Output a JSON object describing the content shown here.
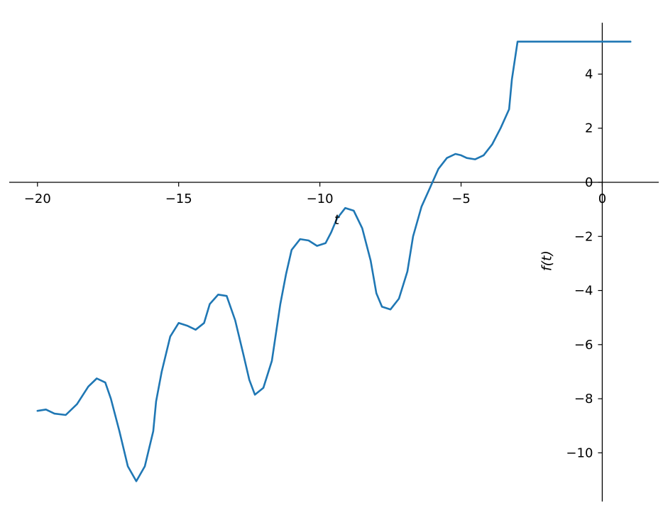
{
  "chart_data": {
    "type": "line",
    "title": "",
    "xlabel": "t",
    "ylabel": "f(t)",
    "xlim": [
      -21,
      2
    ],
    "ylim": [
      -11.8,
      5.9
    ],
    "x_ticks": [
      -20,
      -15,
      -10,
      -5,
      0
    ],
    "x_tick_labels": [
      "−20",
      "−15",
      "−10",
      "−5",
      "0"
    ],
    "y_ticks": [
      -10,
      -8,
      -6,
      -4,
      -2,
      0,
      2,
      4
    ],
    "y_tick_labels": [
      "−10",
      "−8",
      "−6",
      "−4",
      "−2",
      "0",
      "2",
      "4"
    ],
    "grid": false,
    "line_color": "#1f77b4",
    "series": [
      {
        "x": [
          -20.0,
          -19.7,
          -19.4,
          -19.0,
          -18.6,
          -18.2,
          -17.9,
          -17.6,
          -17.4,
          -17.1,
          -16.8,
          -16.5,
          -16.2,
          -15.9,
          -15.8,
          -15.6,
          -15.3,
          -15.0,
          -14.7,
          -14.4,
          -14.1,
          -13.9,
          -13.6,
          -13.3,
          -13.0,
          -12.7,
          -12.5,
          -12.3,
          -12.0,
          -11.7,
          -11.4,
          -11.2,
          -11.0,
          -10.7,
          -10.4,
          -10.1,
          -9.8,
          -9.6,
          -9.4,
          -9.1,
          -8.8,
          -8.5,
          -8.2,
          -8.0,
          -7.8,
          -7.5,
          -7.2,
          -6.9,
          -6.7,
          -6.4,
          -6.1,
          -5.8,
          -5.5,
          -5.2,
          -5.0,
          -4.8,
          -4.5,
          -4.2,
          -3.9,
          -3.6,
          -3.3,
          -3.2,
          -3.0,
          -2.8,
          -2.6,
          -2.4,
          -2.2,
          -2.0,
          -1.8,
          -1.6,
          -1.4,
          -1.2,
          -1.0,
          -0.8,
          -0.6,
          -0.4,
          -0.2,
          0.0,
          0.2,
          0.4,
          0.6,
          0.8,
          0.9,
          1.0
        ],
        "y": [
          -8.45,
          -8.4,
          -8.55,
          -8.6,
          -8.2,
          -7.55,
          -7.25,
          -7.4,
          -8.0,
          -9.2,
          -10.5,
          -11.05,
          -10.5,
          -9.2,
          -8.1,
          -7.0,
          -5.7,
          -5.2,
          -5.3,
          -5.45,
          -5.2,
          -4.5,
          -4.15,
          -4.2,
          -5.1,
          -6.4,
          -7.3,
          -7.85,
          -7.6,
          -6.6,
          -4.5,
          -3.4,
          -2.5,
          -2.1,
          -2.15,
          -2.35,
          -2.25,
          -1.85,
          -1.35,
          -0.95,
          -1.05,
          -1.7,
          -2.9,
          -4.1,
          -4.6,
          -4.7,
          -4.3,
          -3.3,
          -2.0,
          -0.9,
          -0.2,
          0.5,
          0.9,
          1.05,
          1.0,
          0.9,
          0.85,
          1.0,
          1.4,
          2.0,
          2.7,
          3.8,
          5.2,
          5.2,
          5.2,
          5.2,
          5.2,
          5.2,
          5.2,
          5.2,
          5.2,
          5.2,
          5.2,
          5.2,
          5.2,
          5.2,
          5.2,
          5.2,
          5.2,
          5.2,
          5.2,
          5.2,
          5.2,
          5.2
        ]
      }
    ]
  }
}
